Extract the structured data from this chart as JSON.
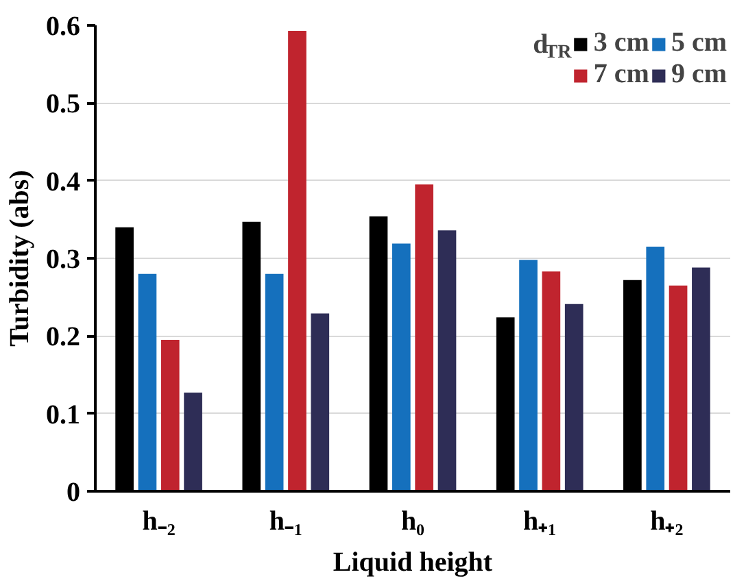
{
  "chart_data": {
    "type": "bar",
    "xlabel": "Liquid height",
    "ylabel": "Turbidity (abs)",
    "legend_title": "d$_{TR}$",
    "categories": [
      "h₋₂",
      "h₋₁",
      "h₀",
      "h₊₁",
      "h₊₂"
    ],
    "series": [
      {
        "name": "3 cm",
        "color": "#000000",
        "values": [
          0.34,
          0.347,
          0.354,
          0.224,
          0.272
        ]
      },
      {
        "name": "5 cm",
        "color": "#1570bd",
        "values": [
          0.28,
          0.28,
          0.319,
          0.298,
          0.315
        ]
      },
      {
        "name": "7 cm",
        "color": "#c0242e",
        "values": [
          0.195,
          0.593,
          0.395,
          0.283,
          0.265
        ]
      },
      {
        "name": "9 cm",
        "color": "#2e2d56",
        "values": [
          0.127,
          0.229,
          0.336,
          0.241,
          0.288
        ]
      }
    ],
    "ylim": [
      0,
      0.6
    ],
    "yticks": [
      0,
      0.1,
      0.2,
      0.3,
      0.4,
      0.5,
      0.6
    ],
    "grid": "y",
    "legend": "top right"
  }
}
